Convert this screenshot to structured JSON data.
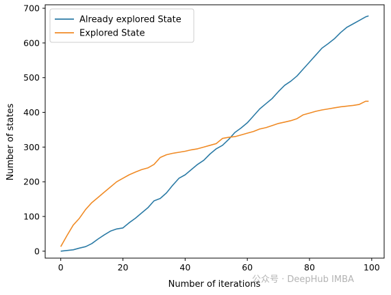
{
  "chart_data": {
    "type": "line",
    "xlabel": "Number of iterations",
    "ylabel": "Number of states",
    "xlim": [
      -5,
      104
    ],
    "ylim": [
      -20,
      710
    ],
    "xticks": [
      0,
      20,
      40,
      60,
      80,
      100
    ],
    "yticks": [
      0,
      100,
      200,
      300,
      400,
      500,
      600,
      700
    ],
    "grid": false,
    "legend_position": "top-left",
    "x": [
      0,
      2,
      4,
      6,
      8,
      10,
      12,
      14,
      16,
      18,
      20,
      22,
      24,
      26,
      28,
      30,
      32,
      34,
      36,
      38,
      40,
      42,
      44,
      46,
      48,
      50,
      52,
      54,
      56,
      58,
      60,
      62,
      64,
      66,
      68,
      70,
      72,
      74,
      76,
      78,
      80,
      82,
      84,
      86,
      88,
      90,
      92,
      94,
      96,
      98,
      99
    ],
    "series": [
      {
        "name": "Already explored State",
        "color": "#2a7aa5",
        "values": [
          0,
          2,
          4,
          9,
          13,
          22,
          35,
          47,
          58,
          64,
          67,
          82,
          95,
          110,
          125,
          145,
          152,
          168,
          190,
          210,
          220,
          235,
          250,
          262,
          280,
          295,
          305,
          322,
          342,
          355,
          370,
          390,
          410,
          425,
          440,
          460,
          478,
          490,
          505,
          525,
          545,
          565,
          585,
          598,
          612,
          630,
          645,
          655,
          665,
          675,
          678
        ]
      },
      {
        "name": "Explored State",
        "color": "#f08a24",
        "values": [
          13,
          45,
          75,
          95,
          120,
          140,
          155,
          170,
          185,
          200,
          210,
          220,
          228,
          235,
          240,
          250,
          270,
          278,
          282,
          285,
          288,
          292,
          295,
          300,
          305,
          310,
          325,
          328,
          330,
          335,
          340,
          345,
          352,
          356,
          362,
          368,
          372,
          376,
          382,
          393,
          398,
          403,
          407,
          410,
          413,
          416,
          418,
          420,
          423,
          432,
          432
        ]
      }
    ]
  },
  "watermark": "公众号 · DeepHub IMBA"
}
